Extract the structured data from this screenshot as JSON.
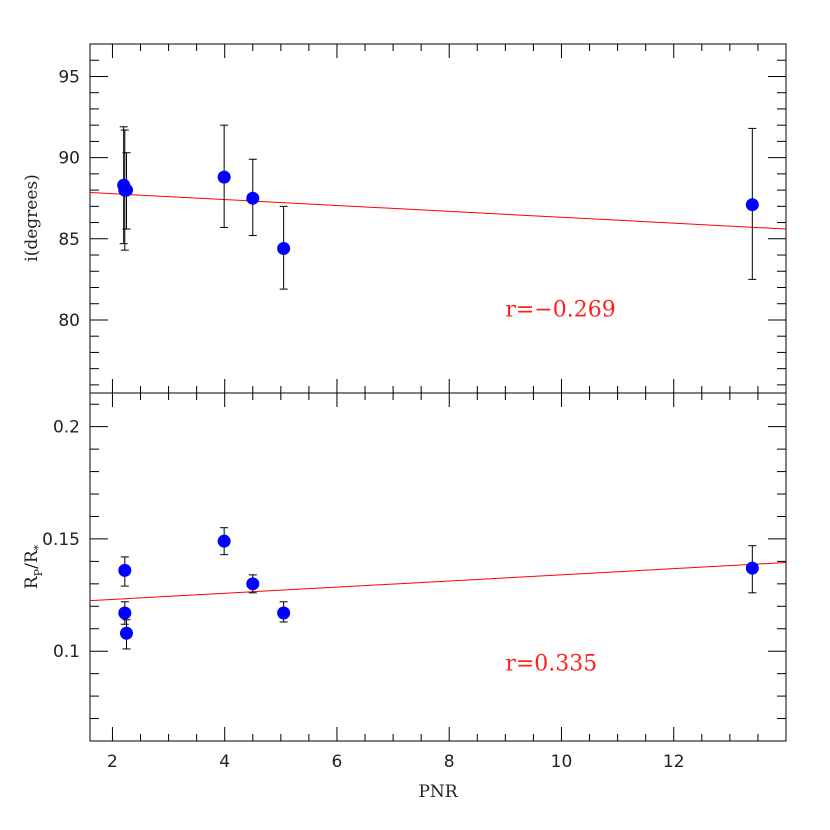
{
  "chart_data": [
    {
      "type": "scatter",
      "panel": "top",
      "xlabel": "PNR",
      "ylabel": "i(degrees)",
      "xlim": [
        1.6,
        14.0
      ],
      "ylim": [
        75.5,
        97
      ],
      "yticks": [
        80,
        85,
        90,
        95
      ],
      "x_labels_shown": false,
      "points": [
        {
          "x": 2.2,
          "y": 88.3,
          "err_lo": 3.6,
          "err_hi": 3.6
        },
        {
          "x": 2.22,
          "y": 88.0,
          "err_lo": 3.7,
          "err_hi": 3.7
        },
        {
          "x": 2.25,
          "y": 88.0,
          "err_lo": 2.4,
          "err_hi": 2.3
        },
        {
          "x": 3.99,
          "y": 88.8,
          "err_lo": 3.1,
          "err_hi": 3.2
        },
        {
          "x": 4.5,
          "y": 87.5,
          "err_lo": 2.3,
          "err_hi": 2.4
        },
        {
          "x": 5.05,
          "y": 84.4,
          "err_lo": 2.5,
          "err_hi": 2.6
        },
        {
          "x": 13.4,
          "y": 87.1,
          "err_lo": 4.6,
          "err_hi": 4.7
        }
      ],
      "fit_line": {
        "x": [
          1.6,
          14.0
        ],
        "y": [
          87.85,
          85.6
        ]
      },
      "annotation": "r=−0.269",
      "annotation_pos": {
        "x": 9.0,
        "y": 80.2
      },
      "marker_color": "#0000ff",
      "line_color": "#ff0000"
    },
    {
      "type": "scatter",
      "panel": "bottom",
      "xlabel": "PNR",
      "ylabel_main": "R",
      "ylabel_sub1": "P",
      "ylabel_mid": "/R",
      "ylabel_sub2": "*",
      "xlim": [
        1.6,
        14.0
      ],
      "ylim": [
        0.06,
        0.215
      ],
      "yticks": [
        0.1,
        0.15,
        0.2
      ],
      "ytick_labels": [
        "0.1",
        "0.15",
        "0.2"
      ],
      "xticks": [
        2,
        4,
        6,
        8,
        10,
        12
      ],
      "points": [
        {
          "x": 2.22,
          "y": 0.136,
          "err_lo": 0.007,
          "err_hi": 0.006
        },
        {
          "x": 2.22,
          "y": 0.117,
          "err_lo": 0.005,
          "err_hi": 0.005
        },
        {
          "x": 2.25,
          "y": 0.108,
          "err_lo": 0.007,
          "err_hi": 0.006
        },
        {
          "x": 3.99,
          "y": 0.149,
          "err_lo": 0.006,
          "err_hi": 0.006
        },
        {
          "x": 4.5,
          "y": 0.13,
          "err_lo": 0.004,
          "err_hi": 0.004
        },
        {
          "x": 5.05,
          "y": 0.117,
          "err_lo": 0.004,
          "err_hi": 0.005
        },
        {
          "x": 13.4,
          "y": 0.137,
          "err_lo": 0.011,
          "err_hi": 0.01
        }
      ],
      "fit_line": {
        "x": [
          1.6,
          14.0
        ],
        "y": [
          0.1225,
          0.1395
        ]
      },
      "annotation": "r=0.335",
      "annotation_pos": {
        "x": 9.0,
        "y": 0.0915
      },
      "marker_color": "#0000ff",
      "line_color": "#ff0000"
    }
  ],
  "xlabel": "PNR"
}
